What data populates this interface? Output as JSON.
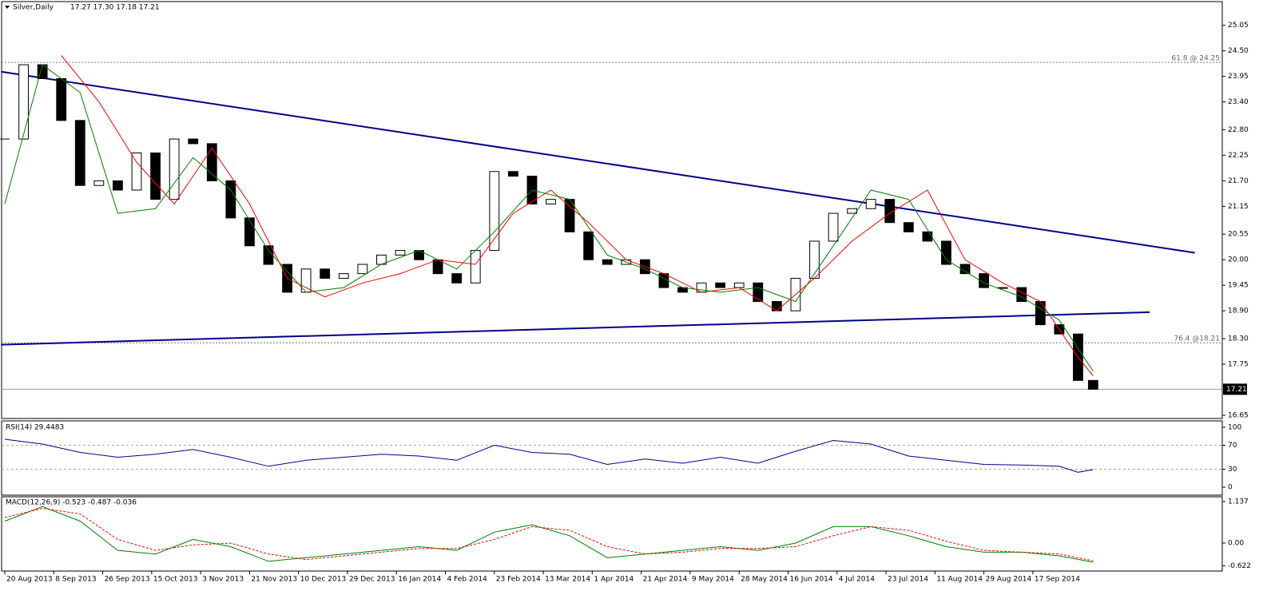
{
  "chart_data": {
    "type": "candlestick",
    "title": "Silver,Daily",
    "ohlc_header": "17.27 17.30 17.18 17.21",
    "xlim": [
      -0.85,
      323.3
    ],
    "xticks": [
      {
        "value": 0,
        "label": "20 Aug 2013"
      },
      {
        "value": 13,
        "label": "8 Sep 2013"
      },
      {
        "value": 26,
        "label": "26 Sep 2013"
      },
      {
        "value": 39,
        "label": "15 Oct 2013"
      },
      {
        "value": 52,
        "label": "3 Nov 2013"
      },
      {
        "value": 65,
        "label": "21 Nov 2013"
      },
      {
        "value": 78,
        "label": "10 Dec 2013"
      },
      {
        "value": 91,
        "label": "29 Dec 2013"
      },
      {
        "value": 104,
        "label": "16 Jan 2014"
      },
      {
        "value": 117,
        "label": "4 Feb 2014"
      },
      {
        "value": 130,
        "label": "23 Feb 2014"
      },
      {
        "value": 143,
        "label": "13 Mar 2014"
      },
      {
        "value": 156,
        "label": "1 Apr 2014"
      },
      {
        "value": 169,
        "label": "21 Apr 2014"
      },
      {
        "value": 182,
        "label": "9 May 2014"
      },
      {
        "value": 195,
        "label": "28 May 2014"
      },
      {
        "value": 208,
        "label": "16 Jun 2014"
      },
      {
        "value": 221,
        "label": "4 Jul 2014"
      },
      {
        "value": 234,
        "label": "23 Jul 2014"
      },
      {
        "value": 247,
        "label": "11 Aug 2014"
      },
      {
        "value": 260,
        "label": "29 Aug 2014"
      },
      {
        "value": 273,
        "label": "17 Sep 2014"
      }
    ],
    "price": {
      "ylim": [
        16.58,
        25.56
      ],
      "yticks": [
        25.05,
        {
          "value": 24.5,
          "label": "24.50"
        },
        23.95,
        {
          "value": 23.4,
          "label": "23.40"
        },
        {
          "value": 22.8,
          "label": "22.80"
        },
        22.25,
        {
          "value": 21.7,
          "label": "21.70"
        },
        21.15,
        20.55,
        {
          "value": 20,
          "label": "20.00"
        },
        19.45,
        {
          "value": 18.9,
          "label": "18.90"
        },
        {
          "value": 18.3,
          "label": "18.30"
        },
        17.75,
        16.65
      ],
      "last_price": 17.21,
      "x": [
        0,
        5,
        10,
        15,
        20,
        25,
        30,
        35,
        40,
        45,
        50,
        55,
        60,
        65,
        70,
        75,
        80,
        85,
        90,
        95,
        100,
        105,
        110,
        115,
        120,
        125,
        130,
        135,
        140,
        145,
        150,
        155,
        160,
        165,
        170,
        175,
        180,
        185,
        190,
        195,
        200,
        205,
        210,
        215,
        220,
        225,
        230,
        235,
        240,
        245,
        250,
        255,
        260,
        265,
        270,
        275,
        280,
        285,
        289
      ],
      "close": [
        22.6,
        24.2,
        23.9,
        23.0,
        21.6,
        21.7,
        21.5,
        22.3,
        21.3,
        22.6,
        22.5,
        21.7,
        20.9,
        20.3,
        19.9,
        19.3,
        19.8,
        19.6,
        19.7,
        19.9,
        20.1,
        20.2,
        20.0,
        19.7,
        19.5,
        20.2,
        21.9,
        21.8,
        21.2,
        21.3,
        20.6,
        20.0,
        19.9,
        20.0,
        19.7,
        19.4,
        19.3,
        19.5,
        19.4,
        19.5,
        19.1,
        18.9,
        19.6,
        20.4,
        21.0,
        21.1,
        21.3,
        20.8,
        20.6,
        20.4,
        19.9,
        19.7,
        19.4,
        19.4,
        19.1,
        18.6,
        18.4,
        17.4,
        17.21
      ],
      "moving_averages": [
        {
          "color": "#ff0000",
          "x": [
            15,
            25,
            35,
            45,
            55,
            65,
            75,
            85,
            95,
            105,
            115,
            125,
            135,
            145,
            155,
            165,
            175,
            185,
            195,
            205,
            215,
            225,
            235,
            245,
            255,
            265,
            275,
            285,
            289
          ],
          "values": [
            24.4,
            23.4,
            22.1,
            21.2,
            22.4,
            21.2,
            19.6,
            19.2,
            19.5,
            19.7,
            20.0,
            19.9,
            21.0,
            21.5,
            20.8,
            20.0,
            19.7,
            19.3,
            19.4,
            18.9,
            19.6,
            20.4,
            21.0,
            21.5,
            20.0,
            19.5,
            19.1,
            17.9,
            17.5
          ]
        },
        {
          "color": "#008000",
          "x": [
            0,
            10,
            20,
            30,
            40,
            50,
            60,
            70,
            80,
            90,
            100,
            110,
            120,
            130,
            140,
            150,
            160,
            170,
            180,
            190,
            200,
            210,
            220,
            230,
            240,
            250,
            260,
            270,
            280,
            289
          ],
          "values": [
            21.2,
            24.2,
            23.6,
            21.0,
            21.1,
            22.2,
            21.5,
            20.2,
            19.3,
            19.4,
            19.9,
            20.2,
            19.8,
            20.6,
            21.5,
            21.3,
            20.1,
            19.8,
            19.4,
            19.3,
            19.4,
            19.1,
            20.3,
            21.5,
            21.3,
            20.0,
            19.5,
            19.2,
            18.7,
            17.6
          ]
        }
      ],
      "trendlines": [
        {
          "color": "#00008b",
          "x": [
            -1,
            316
          ],
          "y": [
            24.05,
            20.15
          ]
        },
        {
          "color": "#00008b",
          "x": [
            -1,
            304
          ],
          "y": [
            18.17,
            18.87
          ]
        }
      ],
      "levels": [
        {
          "value": 24.25,
          "label": "61.8 @ 24.25"
        },
        {
          "value": 18.21,
          "label": "76.4 @18.21"
        }
      ]
    },
    "rsi": {
      "label": "RSI(14) 29.4483",
      "color": "#00008b",
      "ylim": [
        -13.3,
        110.7
      ],
      "yticks": [
        100,
        70,
        30,
        0
      ],
      "levels": [
        70,
        30
      ],
      "x": [
        0,
        10,
        20,
        30,
        40,
        50,
        60,
        70,
        80,
        90,
        100,
        110,
        120,
        130,
        140,
        150,
        160,
        170,
        180,
        190,
        200,
        210,
        220,
        230,
        240,
        250,
        260,
        270,
        280,
        285,
        289
      ],
      "values": [
        80,
        72,
        58,
        50,
        55,
        63,
        50,
        35,
        45,
        50,
        55,
        52,
        45,
        70,
        58,
        55,
        38,
        47,
        40,
        50,
        40,
        60,
        78,
        72,
        52,
        45,
        38,
        37,
        35,
        25,
        29.4
      ]
    },
    "macd": {
      "label": "MACD(12,26,9) -0.523 -0.487 -0.036",
      "ylim": [
        -0.766,
        1.268
      ],
      "yticks": [
        1.137,
        {
          "value": 0,
          "label": "0.00"
        },
        -0.622
      ],
      "x": [
        0,
        10,
        20,
        30,
        40,
        50,
        60,
        70,
        80,
        90,
        100,
        110,
        120,
        130,
        140,
        150,
        160,
        170,
        180,
        190,
        200,
        210,
        220,
        230,
        240,
        250,
        260,
        270,
        280,
        289
      ],
      "series": [
        {
          "color": "#008000",
          "values": [
            0.6,
            1.0,
            0.6,
            -0.2,
            -0.3,
            0.1,
            -0.1,
            -0.5,
            -0.4,
            -0.3,
            -0.2,
            -0.1,
            -0.2,
            0.3,
            0.5,
            0.2,
            -0.4,
            -0.3,
            -0.2,
            -0.1,
            -0.2,
            0.0,
            0.45,
            0.45,
            0.2,
            -0.1,
            -0.25,
            -0.25,
            -0.35,
            -0.523
          ]
        },
        {
          "color": "#ff0000",
          "dashed": true,
          "values": [
            0.7,
            0.95,
            0.8,
            0.1,
            -0.2,
            -0.05,
            0.0,
            -0.3,
            -0.45,
            -0.35,
            -0.25,
            -0.15,
            -0.15,
            0.1,
            0.45,
            0.35,
            -0.1,
            -0.3,
            -0.25,
            -0.15,
            -0.15,
            -0.1,
            0.2,
            0.45,
            0.35,
            0.05,
            -0.2,
            -0.25,
            -0.3,
            -0.487
          ]
        }
      ]
    }
  }
}
